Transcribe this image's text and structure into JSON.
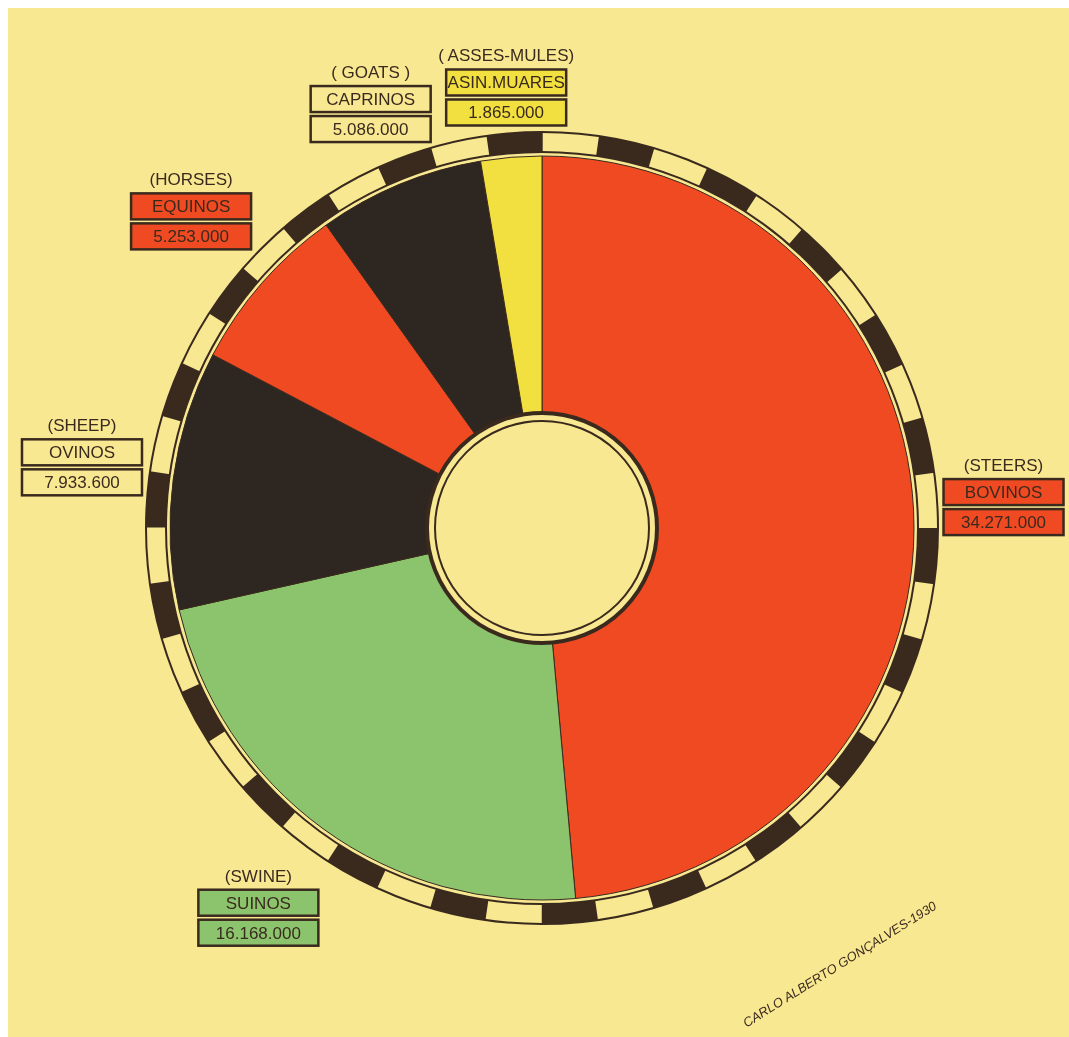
{
  "chart_data": {
    "type": "donut",
    "categories": [
      "BOVINOS",
      "SUINOS",
      "OVINOS",
      "EQUINOS",
      "CAPRINOS",
      "ASIN.MUARES"
    ],
    "values": [
      34271000,
      16168000,
      7933600,
      5253000,
      5086000,
      1865000
    ],
    "value_labels": [
      "34.271.000",
      "16.168.000",
      "7.933.600",
      "5.253.000",
      "5.086.000",
      "1.865.000"
    ],
    "colors": [
      "#f04a22",
      "#8cc46e",
      "#2e2620",
      "#f04a22",
      "#2e2620",
      "#f2e040"
    ],
    "annotations": [
      {
        "text": "(STEERS)",
        "x": "BOVINOS"
      },
      {
        "text": "(SWINE)",
        "x": "SUINOS"
      },
      {
        "text": "(SHEEP)",
        "x": "OVINOS"
      },
      {
        "text": "(HORSES)",
        "x": "EQUINOS"
      },
      {
        "text": "( GOATS )",
        "x": "CAPRINOS"
      },
      {
        "text": "( ASSES-MULES)",
        "x": "ASIN.MUARES"
      },
      "CARLO ALBERTO GONÇALVES-1930"
    ]
  }
}
